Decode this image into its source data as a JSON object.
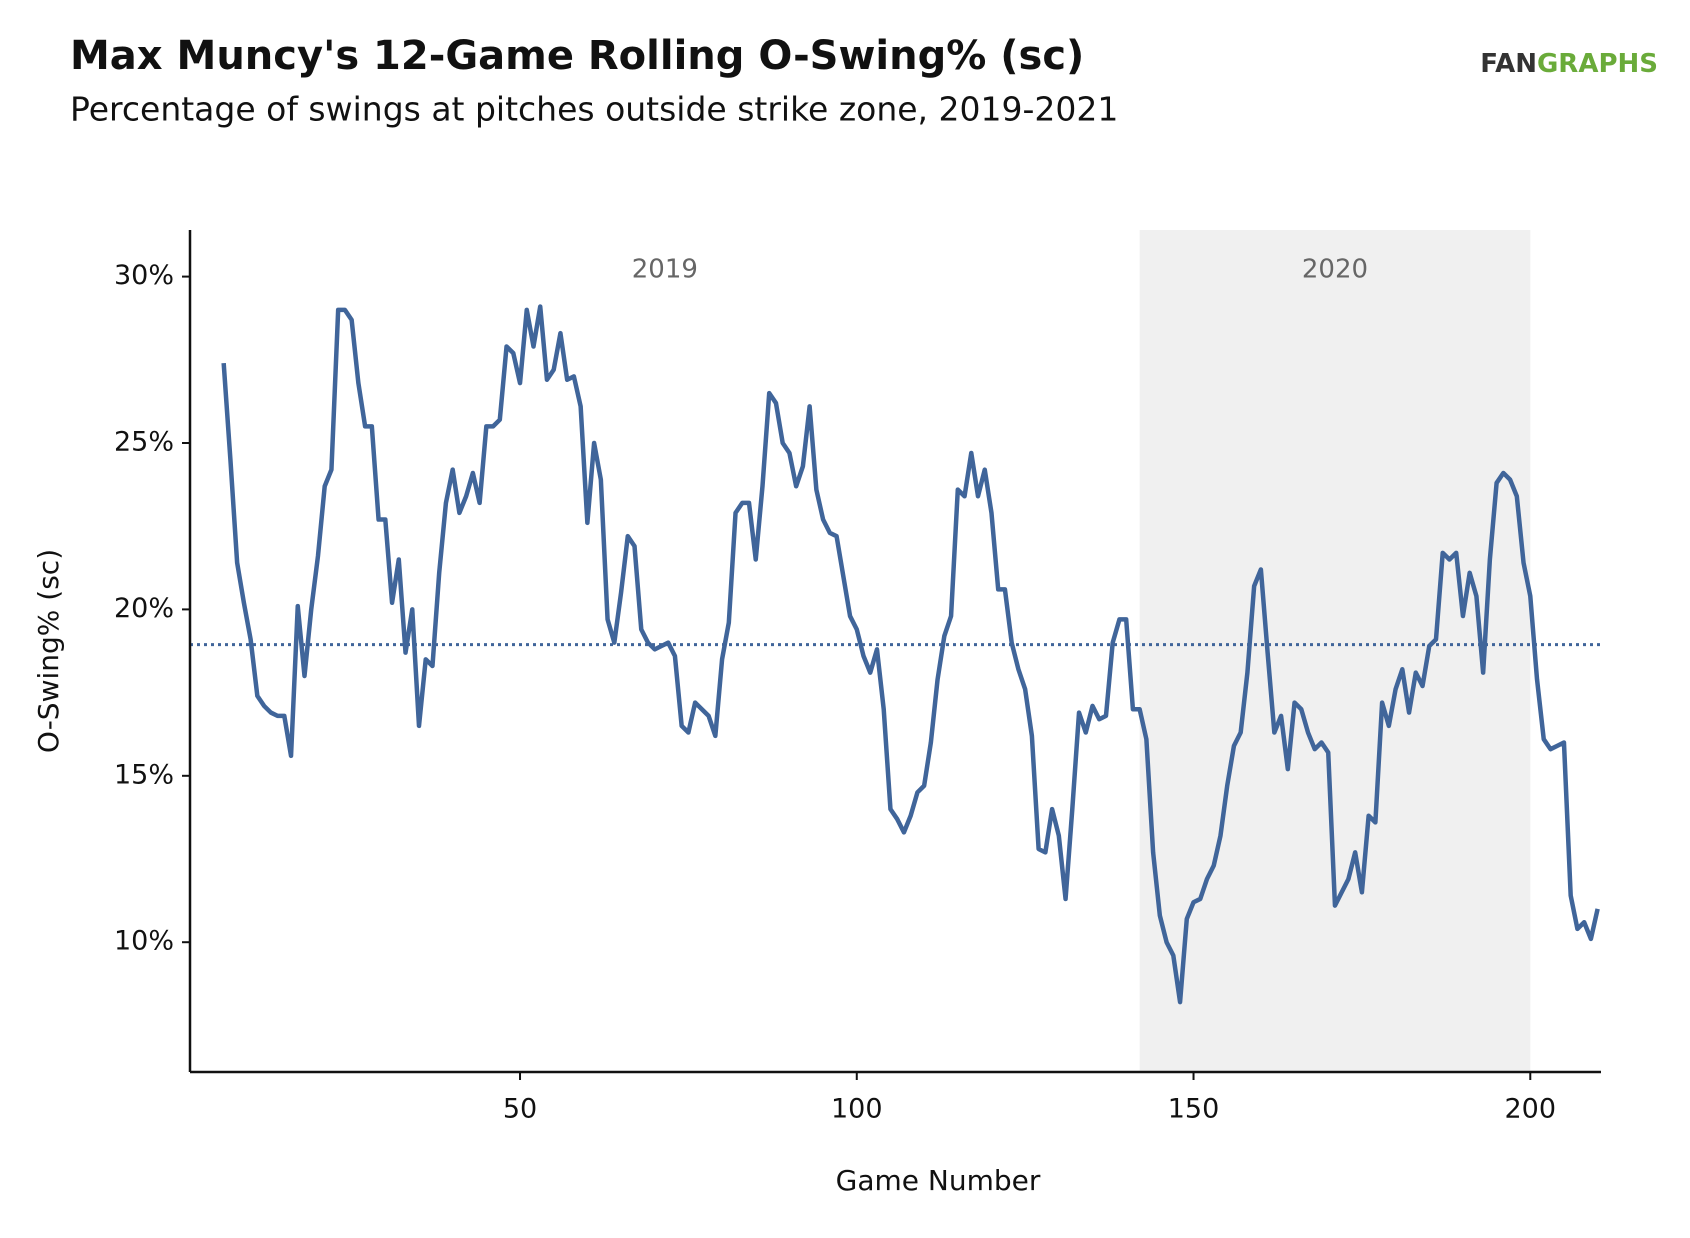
{
  "chart_data": {
    "type": "line",
    "title": "Max Muncy's 12-Game Rolling O-Swing% (sc)",
    "subtitle": "Percentage of swings at pitches outside strike zone, 2019-2021",
    "logo": [
      "FAN",
      "GRAPHS"
    ],
    "x_label": "Game Number",
    "y_label": "O-Swing% (sc)",
    "xlim": [
      1,
      210.5
    ],
    "ylim": [
      6.1,
      31.4
    ],
    "xticks": [
      50,
      100,
      150,
      200
    ],
    "yticks": [
      {
        "value": 10,
        "label": "10%"
      },
      {
        "value": 15,
        "label": "15%"
      },
      {
        "value": 20,
        "label": "20%"
      },
      {
        "value": 25,
        "label": "25%"
      },
      {
        "value": 30,
        "label": "30%"
      }
    ],
    "reference_line": 18.94,
    "shaded_region": [
      142,
      200
    ],
    "annotations": [
      {
        "text": "2019",
        "x": 71.5,
        "y": 30.2
      },
      {
        "text": "2020",
        "x": 171,
        "y": 30.2
      }
    ],
    "x": [
      6,
      7,
      8,
      9,
      10,
      11,
      12,
      13,
      14,
      15,
      16,
      17,
      18,
      19,
      20,
      21,
      22,
      23,
      24,
      25,
      26,
      27,
      28,
      29,
      30,
      31,
      32,
      33,
      34,
      35,
      36,
      37,
      38,
      39,
      40,
      41,
      42,
      43,
      44,
      45,
      46,
      47,
      48,
      49,
      50,
      51,
      52,
      53,
      54,
      55,
      56,
      57,
      58,
      59,
      60,
      61,
      62,
      63,
      64,
      65,
      66,
      67,
      68,
      69,
      70,
      71,
      72,
      73,
      74,
      75,
      76,
      77,
      78,
      79,
      80,
      81,
      82,
      83,
      84,
      85,
      86,
      87,
      88,
      89,
      90,
      91,
      92,
      93,
      94,
      95,
      96,
      97,
      98,
      99,
      100,
      101,
      102,
      103,
      104,
      105,
      106,
      107,
      108,
      109,
      110,
      111,
      112,
      113,
      114,
      115,
      116,
      117,
      118,
      119,
      120,
      121,
      122,
      123,
      124,
      125,
      126,
      127,
      128,
      129,
      130,
      131,
      132,
      133,
      134,
      135,
      136,
      137,
      138,
      139,
      140,
      141,
      142,
      143,
      144,
      145,
      146,
      147,
      148,
      149,
      150,
      151,
      152,
      153,
      154,
      155,
      156,
      157,
      158,
      159,
      160,
      161,
      162,
      163,
      164,
      165,
      166,
      167,
      168,
      169,
      170,
      171,
      172,
      173,
      174,
      175,
      176,
      177,
      178,
      179,
      180,
      181,
      182,
      183,
      184,
      185,
      186,
      187,
      188,
      189,
      190,
      191,
      192,
      193,
      194,
      195,
      196,
      197,
      198,
      199,
      200,
      201,
      202,
      203,
      204,
      205,
      206,
      207,
      208,
      209,
      210
    ],
    "series": [
      {
        "name": "O-Swing%",
        "color": "#40659a",
        "values": [
          27.4,
          24.5,
          21.4,
          20.2,
          19.1,
          17.4,
          17.1,
          16.9,
          16.8,
          16.8,
          15.6,
          20.1,
          18.0,
          20.0,
          21.6,
          23.7,
          24.2,
          29.0,
          29.0,
          28.7,
          26.8,
          25.5,
          25.5,
          22.7,
          22.7,
          20.2,
          21.5,
          18.7,
          20.0,
          16.5,
          18.5,
          18.3,
          21.1,
          23.2,
          24.2,
          22.9,
          23.4,
          24.1,
          23.2,
          25.5,
          25.5,
          25.7,
          27.9,
          27.7,
          26.8,
          29.0,
          27.9,
          29.1,
          26.9,
          27.2,
          28.3,
          26.9,
          27.0,
          26.1,
          22.6,
          25.0,
          23.9,
          19.7,
          19.0,
          20.5,
          22.2,
          21.9,
          19.4,
          19.0,
          18.8,
          18.9,
          19.0,
          18.6,
          16.5,
          16.3,
          17.2,
          17.0,
          16.8,
          16.2,
          18.5,
          19.6,
          22.9,
          23.2,
          23.2,
          21.5,
          23.7,
          26.5,
          26.2,
          25.0,
          24.7,
          23.7,
          24.3,
          26.1,
          23.6,
          22.7,
          22.3,
          22.2,
          21.0,
          19.8,
          19.4,
          18.6,
          18.1,
          18.8,
          17.0,
          14.0,
          13.7,
          13.3,
          13.8,
          14.5,
          14.7,
          16.0,
          17.9,
          19.2,
          19.8,
          23.6,
          23.4,
          24.7,
          23.4,
          24.2,
          22.9,
          20.6,
          20.6,
          19.0,
          18.2,
          17.6,
          16.2,
          12.8,
          12.7,
          14.0,
          13.2,
          11.3,
          14.0,
          16.9,
          16.3,
          17.1,
          16.7,
          16.8,
          19.0,
          19.7,
          19.7,
          17.0,
          17.0,
          16.1,
          12.7,
          10.8,
          10.0,
          9.6,
          8.2,
          10.7,
          11.2,
          11.3,
          11.9,
          12.3,
          13.2,
          14.7,
          15.9,
          16.3,
          18.1,
          20.7,
          21.2,
          18.7,
          16.3,
          16.8,
          15.2,
          17.2,
          17.0,
          16.3,
          15.8,
          16.0,
          15.7,
          11.1,
          11.5,
          11.9,
          12.7,
          11.5,
          13.8,
          13.6,
          17.2,
          16.5,
          17.6,
          18.2,
          16.9,
          18.1,
          17.7,
          18.9,
          19.1,
          21.7,
          21.5,
          21.7,
          19.8,
          21.1,
          20.4,
          18.1,
          21.5,
          23.8,
          24.1,
          23.9,
          23.4,
          21.4,
          20.4,
          17.9,
          16.1,
          15.8,
          15.9,
          16.0,
          11.4,
          10.4,
          10.6,
          10.1,
          11.0
        ]
      }
    ]
  }
}
